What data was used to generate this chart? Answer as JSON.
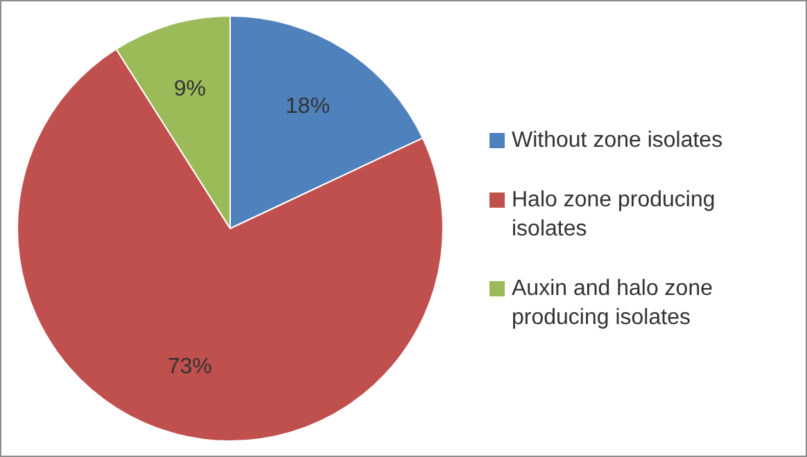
{
  "chart_data": {
    "type": "pie",
    "categories": [
      "Without zone isolates",
      "Halo zone producing isolates",
      "Auxin and halo zone producing isolates"
    ],
    "values": [
      18,
      73,
      9
    ],
    "colors": [
      "#4f81bd",
      "#c0504d",
      "#9bbb59"
    ],
    "value_labels": [
      "18%",
      "73%",
      "9%"
    ],
    "legend": "right"
  }
}
